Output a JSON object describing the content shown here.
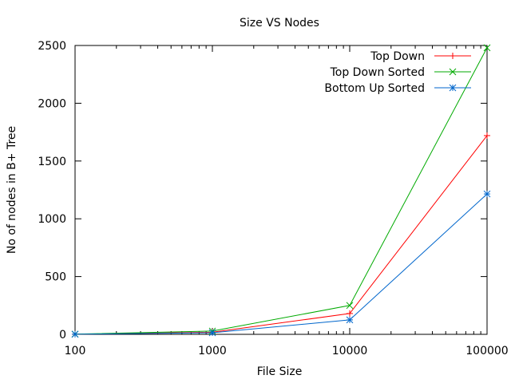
{
  "chart_data": {
    "type": "line",
    "title": "Size VS Nodes",
    "xlabel": "File Size",
    "ylabel": "No of nodes in B+ Tree",
    "x_scale": "log",
    "xlim": [
      100,
      100000
    ],
    "ylim": [
      0,
      2500
    ],
    "x_ticks": [
      100,
      1000,
      10000,
      100000
    ],
    "x_tick_labels": [
      "100",
      "1000",
      "10000",
      "100000"
    ],
    "y_ticks": [
      0,
      500,
      1000,
      1500,
      2000,
      2500
    ],
    "y_tick_labels": [
      "0",
      "500",
      "1000",
      "1500",
      "2000",
      "2500"
    ],
    "grid": false,
    "legend_position": "top-right",
    "series": [
      {
        "name": "Top Down",
        "color": "#ff0000",
        "marker": "plus",
        "x": [
          100,
          1000,
          10000,
          100000
        ],
        "y": [
          1,
          18,
          180,
          1720
        ]
      },
      {
        "name": "Top Down Sorted",
        "color": "#00aa00",
        "marker": "cross",
        "x": [
          100,
          1000,
          10000,
          100000
        ],
        "y": [
          2,
          28,
          250,
          2480
        ]
      },
      {
        "name": "Bottom Up Sorted",
        "color": "#0066cc",
        "marker": "star",
        "x": [
          100,
          1000,
          10000,
          100000
        ],
        "y": [
          1,
          14,
          125,
          1215
        ]
      }
    ]
  }
}
